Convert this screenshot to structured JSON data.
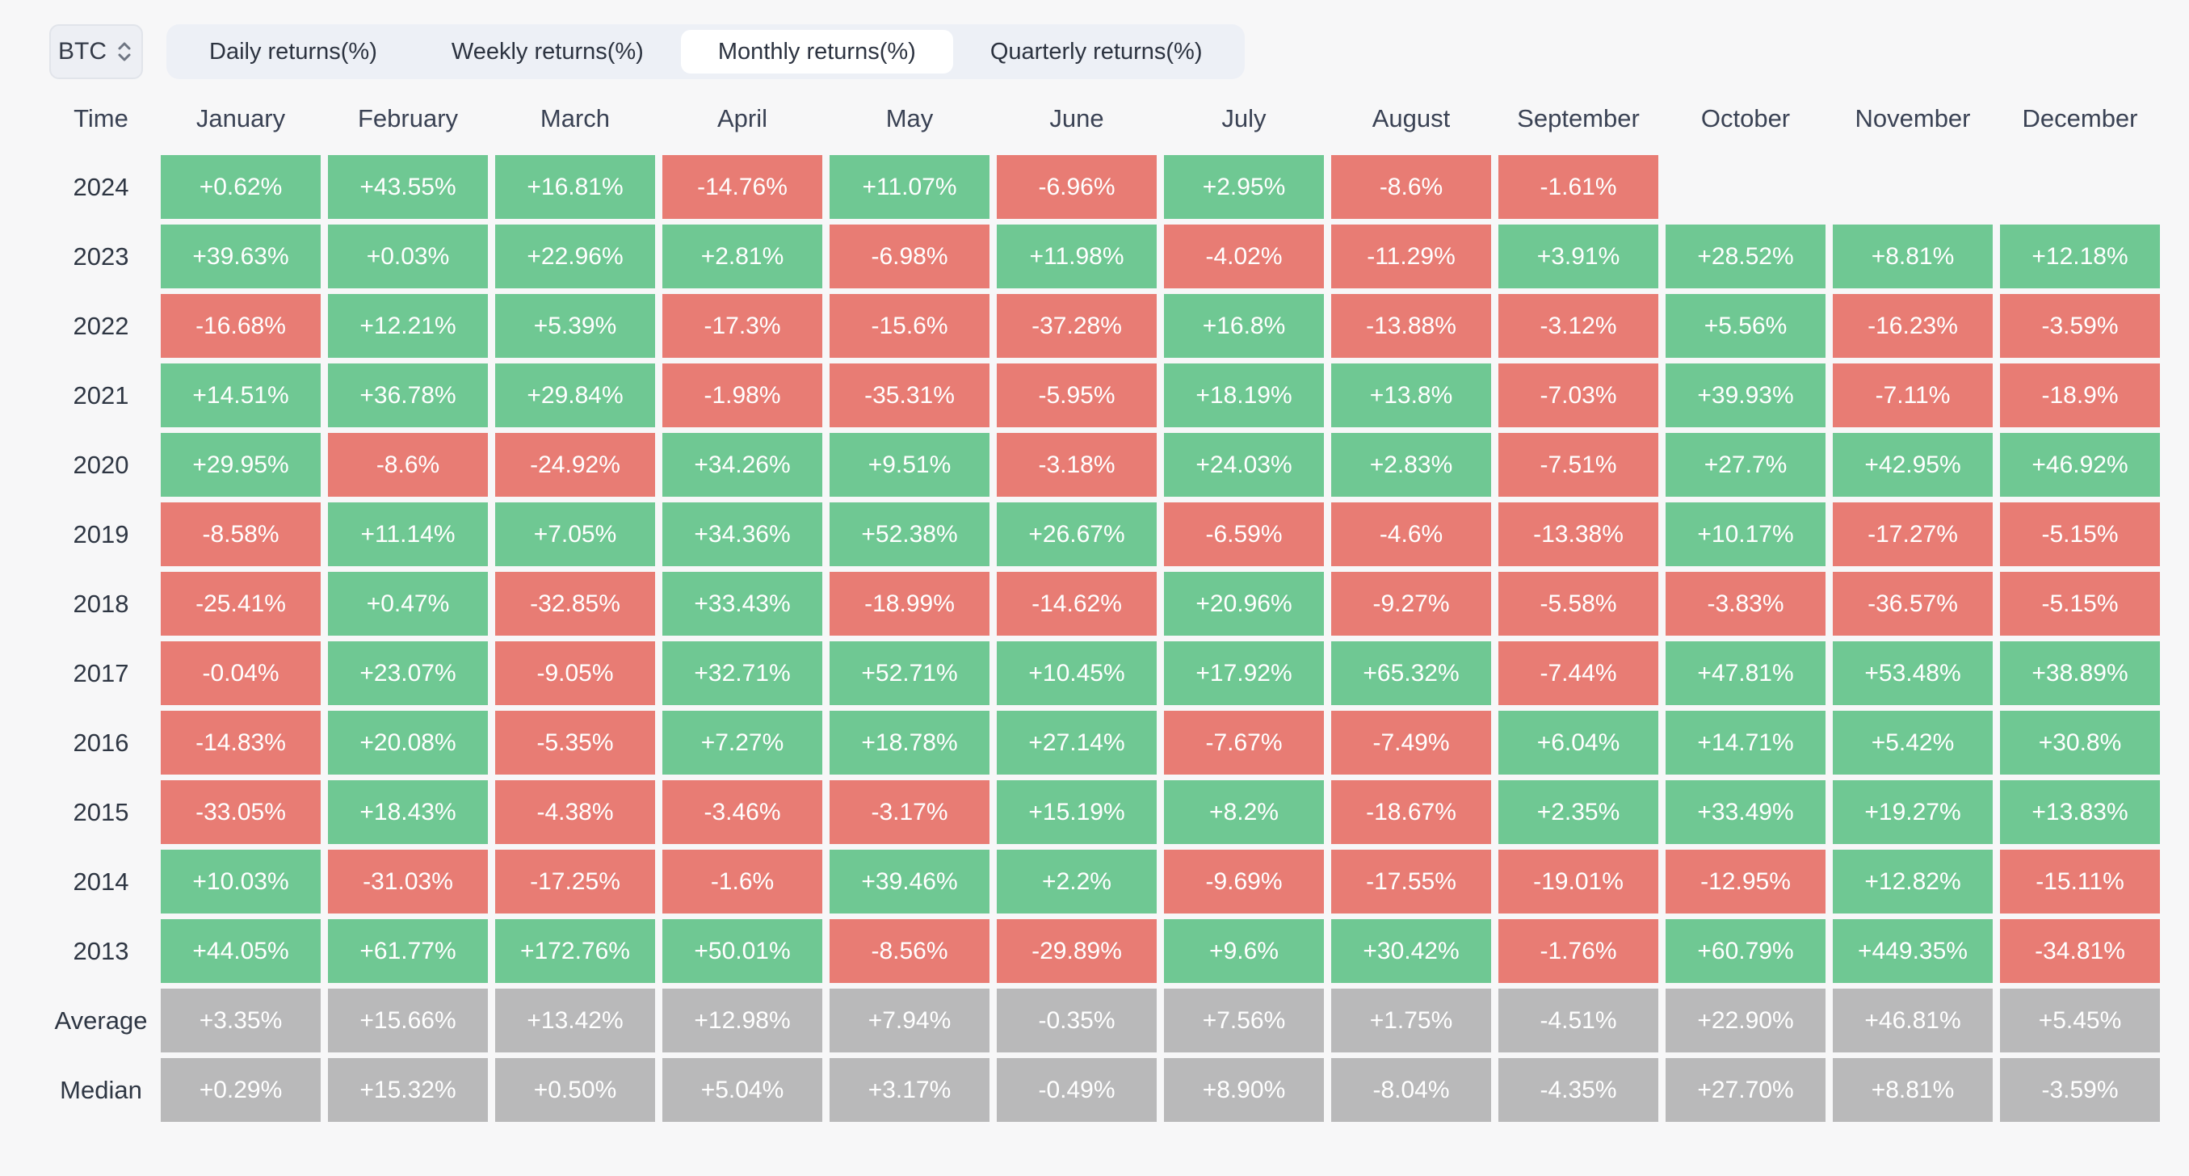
{
  "toolbar": {
    "asset_selector": {
      "value": "BTC",
      "icon": "up-down-chevrons-icon"
    },
    "tabs": [
      {
        "label": "Daily returns(%)",
        "active": false
      },
      {
        "label": "Weekly returns(%)",
        "active": false
      },
      {
        "label": "Monthly returns(%)",
        "active": true
      },
      {
        "label": "Quarterly returns(%)",
        "active": false
      }
    ]
  },
  "table": {
    "columns": [
      "Time",
      "January",
      "February",
      "March",
      "April",
      "May",
      "June",
      "July",
      "August",
      "September",
      "October",
      "November",
      "December"
    ],
    "rows": [
      {
        "label": "2024",
        "type": "year",
        "values": [
          "+0.62%",
          "+43.55%",
          "+16.81%",
          "-14.76%",
          "+11.07%",
          "-6.96%",
          "+2.95%",
          "-8.6%",
          "-1.61%",
          null,
          null,
          null
        ]
      },
      {
        "label": "2023",
        "type": "year",
        "values": [
          "+39.63%",
          "+0.03%",
          "+22.96%",
          "+2.81%",
          "-6.98%",
          "+11.98%",
          "-4.02%",
          "-11.29%",
          "+3.91%",
          "+28.52%",
          "+8.81%",
          "+12.18%"
        ]
      },
      {
        "label": "2022",
        "type": "year",
        "values": [
          "-16.68%",
          "+12.21%",
          "+5.39%",
          "-17.3%",
          "-15.6%",
          "-37.28%",
          "+16.8%",
          "-13.88%",
          "-3.12%",
          "+5.56%",
          "-16.23%",
          "-3.59%"
        ]
      },
      {
        "label": "2021",
        "type": "year",
        "values": [
          "+14.51%",
          "+36.78%",
          "+29.84%",
          "-1.98%",
          "-35.31%",
          "-5.95%",
          "+18.19%",
          "+13.8%",
          "-7.03%",
          "+39.93%",
          "-7.11%",
          "-18.9%"
        ]
      },
      {
        "label": "2020",
        "type": "year",
        "values": [
          "+29.95%",
          "-8.6%",
          "-24.92%",
          "+34.26%",
          "+9.51%",
          "-3.18%",
          "+24.03%",
          "+2.83%",
          "-7.51%",
          "+27.7%",
          "+42.95%",
          "+46.92%"
        ]
      },
      {
        "label": "2019",
        "type": "year",
        "values": [
          "-8.58%",
          "+11.14%",
          "+7.05%",
          "+34.36%",
          "+52.38%",
          "+26.67%",
          "-6.59%",
          "-4.6%",
          "-13.38%",
          "+10.17%",
          "-17.27%",
          "-5.15%"
        ]
      },
      {
        "label": "2018",
        "type": "year",
        "values": [
          "-25.41%",
          "+0.47%",
          "-32.85%",
          "+33.43%",
          "-18.99%",
          "-14.62%",
          "+20.96%",
          "-9.27%",
          "-5.58%",
          "-3.83%",
          "-36.57%",
          "-5.15%"
        ]
      },
      {
        "label": "2017",
        "type": "year",
        "values": [
          "-0.04%",
          "+23.07%",
          "-9.05%",
          "+32.71%",
          "+52.71%",
          "+10.45%",
          "+17.92%",
          "+65.32%",
          "-7.44%",
          "+47.81%",
          "+53.48%",
          "+38.89%"
        ]
      },
      {
        "label": "2016",
        "type": "year",
        "values": [
          "-14.83%",
          "+20.08%",
          "-5.35%",
          "+7.27%",
          "+18.78%",
          "+27.14%",
          "-7.67%",
          "-7.49%",
          "+6.04%",
          "+14.71%",
          "+5.42%",
          "+30.8%"
        ]
      },
      {
        "label": "2015",
        "type": "year",
        "values": [
          "-33.05%",
          "+18.43%",
          "-4.38%",
          "-3.46%",
          "-3.17%",
          "+15.19%",
          "+8.2%",
          "-18.67%",
          "+2.35%",
          "+33.49%",
          "+19.27%",
          "+13.83%"
        ]
      },
      {
        "label": "2014",
        "type": "year",
        "values": [
          "+10.03%",
          "-31.03%",
          "-17.25%",
          "-1.6%",
          "+39.46%",
          "+2.2%",
          "-9.69%",
          "-17.55%",
          "-19.01%",
          "-12.95%",
          "+12.82%",
          "-15.11%"
        ]
      },
      {
        "label": "2013",
        "type": "year",
        "values": [
          "+44.05%",
          "+61.77%",
          "+172.76%",
          "+50.01%",
          "-8.56%",
          "-29.89%",
          "+9.6%",
          "+30.42%",
          "-1.76%",
          "+60.79%",
          "+449.35%",
          "-34.81%"
        ]
      },
      {
        "label": "Average",
        "type": "summary",
        "values": [
          "+3.35%",
          "+15.66%",
          "+13.42%",
          "+12.98%",
          "+7.94%",
          "-0.35%",
          "+7.56%",
          "+1.75%",
          "-4.51%",
          "+22.90%",
          "+46.81%",
          "+5.45%"
        ]
      },
      {
        "label": "Median",
        "type": "summary",
        "values": [
          "+0.29%",
          "+15.32%",
          "+0.50%",
          "+5.04%",
          "+3.17%",
          "-0.49%",
          "+8.90%",
          "-8.04%",
          "-4.35%",
          "+27.70%",
          "+8.81%",
          "-3.59%"
        ]
      }
    ]
  },
  "colors": {
    "positive": "#6fc893",
    "negative": "#e87c74",
    "summary": "#b9b9ba",
    "background": "#f7f7f8",
    "tab_bar": "#edf0f6",
    "tab_active": "#ffffff",
    "selector_bg": "#edeff4",
    "selector_border": "#e1e4ea"
  }
}
